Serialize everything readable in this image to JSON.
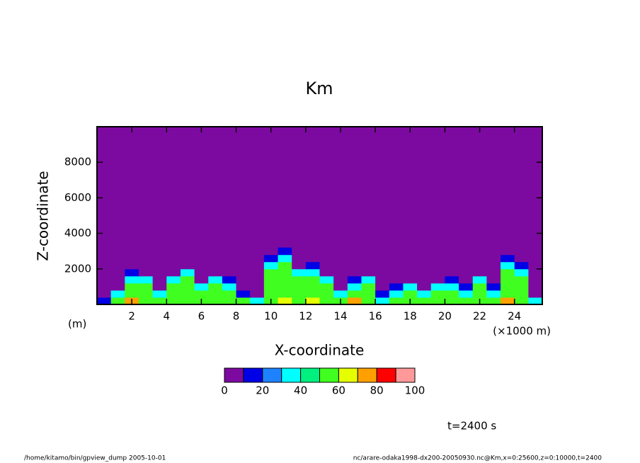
{
  "chart_data": {
    "type": "heatmap",
    "title": "Km",
    "x_label": "X-coordinate",
    "y_label": "Z-coordinate",
    "y_unit": "(m)",
    "x_unit": "(×1000 m)",
    "time_label": "t=2400 s",
    "footer_left": "/home/kitamo/bin/gpview_dump  2005-10-01",
    "footer_right": "nc/arare-odaka1998-dx200-20050930.nc@Km,x=0:25600,z=0:10000,t=2400",
    "xlim": [
      0,
      25600
    ],
    "ylim": [
      0,
      10000
    ],
    "xticks": [
      {
        "value": 2000,
        "label": "2"
      },
      {
        "value": 4000,
        "label": "4"
      },
      {
        "value": 6000,
        "label": "6"
      },
      {
        "value": 8000,
        "label": "8"
      },
      {
        "value": 10000,
        "label": "10"
      },
      {
        "value": 12000,
        "label": "12"
      },
      {
        "value": 14000,
        "label": "14"
      },
      {
        "value": 16000,
        "label": "16"
      },
      {
        "value": 18000,
        "label": "18"
      },
      {
        "value": 20000,
        "label": "20"
      },
      {
        "value": 22000,
        "label": "22"
      },
      {
        "value": 24000,
        "label": "24"
      }
    ],
    "yticks": [
      2000,
      4000,
      6000,
      8000
    ],
    "x": [
      400,
      1200,
      2000,
      2800,
      3600,
      4400,
      5200,
      6000,
      6800,
      7600,
      8400,
      9200,
      10000,
      10800,
      11600,
      12400,
      13200,
      14000,
      14800,
      15600,
      16400,
      17200,
      18000,
      18800,
      19600,
      20400,
      21200,
      22000,
      22800,
      23600,
      24400,
      25200
    ],
    "y": [
      200,
      600,
      1000,
      1400,
      1800,
      2200,
      2600,
      3000
    ],
    "z": [
      [
        15,
        50,
        70,
        50,
        50,
        50,
        50,
        50,
        50,
        50,
        50,
        35,
        50,
        60,
        50,
        60,
        50,
        50,
        70,
        50,
        35,
        50,
        50,
        50,
        50,
        50,
        50,
        50,
        50,
        70,
        50,
        35
      ],
      [
        0,
        35,
        50,
        50,
        35,
        50,
        50,
        50,
        50,
        50,
        15,
        0,
        50,
        50,
        50,
        50,
        50,
        35,
        50,
        50,
        15,
        35,
        50,
        35,
        50,
        50,
        35,
        50,
        35,
        50,
        50,
        0
      ],
      [
        0,
        0,
        50,
        50,
        0,
        50,
        50,
        35,
        50,
        35,
        0,
        0,
        50,
        50,
        50,
        50,
        50,
        0,
        35,
        50,
        0,
        15,
        35,
        0,
        35,
        35,
        15,
        50,
        15,
        50,
        50,
        0
      ],
      [
        0,
        0,
        35,
        35,
        0,
        35,
        50,
        0,
        35,
        15,
        0,
        0,
        50,
        50,
        50,
        50,
        35,
        0,
        15,
        35,
        0,
        0,
        0,
        0,
        0,
        15,
        0,
        35,
        0,
        50,
        50,
        0
      ],
      [
        0,
        0,
        15,
        0,
        0,
        0,
        35,
        0,
        0,
        0,
        0,
        0,
        50,
        50,
        35,
        35,
        0,
        0,
        0,
        0,
        0,
        0,
        0,
        0,
        0,
        0,
        0,
        0,
        0,
        50,
        35,
        0
      ],
      [
        0,
        0,
        0,
        0,
        0,
        0,
        0,
        0,
        0,
        0,
        0,
        0,
        35,
        50,
        0,
        15,
        0,
        0,
        0,
        0,
        0,
        0,
        0,
        0,
        0,
        0,
        0,
        0,
        0,
        35,
        15,
        0
      ],
      [
        0,
        0,
        0,
        0,
        0,
        0,
        0,
        0,
        0,
        0,
        0,
        0,
        15,
        35,
        0,
        0,
        0,
        0,
        0,
        0,
        0,
        0,
        0,
        0,
        0,
        0,
        0,
        0,
        0,
        15,
        0,
        0
      ],
      [
        0,
        0,
        0,
        0,
        0,
        0,
        0,
        0,
        0,
        0,
        0,
        0,
        0,
        15,
        0,
        0,
        0,
        0,
        0,
        0,
        0,
        0,
        0,
        0,
        0,
        0,
        0,
        0,
        0,
        0,
        0,
        0
      ]
    ],
    "levels": [
      0,
      10,
      20,
      30,
      40,
      50,
      60,
      70,
      80,
      90,
      100
    ],
    "colors": [
      "#7d0aa0",
      "#0000e6",
      "#1e82ff",
      "#00ffff",
      "#00f080",
      "#40ff20",
      "#e6ff00",
      "#ffa000",
      "#ff0000",
      "#ff9999"
    ],
    "colorbar_ticks": [
      0,
      20,
      40,
      60,
      80,
      100
    ]
  }
}
